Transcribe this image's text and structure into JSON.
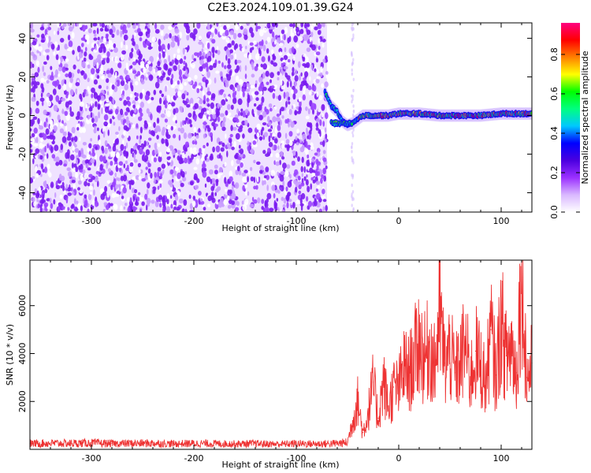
{
  "title": "C2E3.2024.109.01.39.G24",
  "chart_data": [
    {
      "type": "heatmap",
      "title": "",
      "xlabel": "Height of straight line (km)",
      "ylabel": "Frequency (Hz)",
      "xlim": [
        -360,
        130
      ],
      "ylim": [
        -50,
        48
      ],
      "x_ticks": [
        -300,
        -200,
        -100,
        0,
        100
      ],
      "y_ticks": [
        -40,
        -20,
        0,
        20,
        40
      ],
      "grid": false,
      "colorbar": {
        "label": "Normalized spectral amplitude",
        "range": [
          0.0,
          0.96
        ],
        "ticks": [
          0.0,
          0.2,
          0.4,
          0.6,
          0.8
        ],
        "colors": [
          "#ffffff",
          "#d9b8ff",
          "#9b30ff",
          "#4b00e0",
          "#0000ff",
          "#00c8ff",
          "#00ff80",
          "#00ff00",
          "#ffff00",
          "#ff8000",
          "#ff0000",
          "#ff0080"
        ]
      },
      "noise_region": {
        "x_from": -360,
        "x_to": -70,
        "amplitude_range": [
          0.0,
          0.15
        ]
      },
      "signal_ridge": {
        "x": [
          -72,
          -66,
          -60,
          -55,
          -50,
          -45,
          -40,
          -35,
          -30,
          -20,
          -10,
          0,
          20,
          40,
          60,
          80,
          100,
          120,
          130
        ],
        "freq": [
          12,
          5,
          2,
          -3,
          -5,
          -4,
          -2,
          0,
          0,
          0,
          0,
          1,
          1,
          0,
          0,
          0,
          1,
          1,
          1
        ]
      }
    },
    {
      "type": "line",
      "title": "",
      "xlabel": "Height of straight line (km)",
      "ylabel": "SNR (10 * v/v)",
      "xlim": [
        -360,
        130
      ],
      "ylim": [
        0,
        7900
      ],
      "x_ticks": [
        -300,
        -200,
        -100,
        0,
        100
      ],
      "y_ticks": [
        2000,
        4000,
        6000
      ],
      "grid": false,
      "series": [
        {
          "color": "#ee3333",
          "x": [
            -360,
            -340,
            -320,
            -300,
            -280,
            -260,
            -240,
            -220,
            -200,
            -180,
            -160,
            -140,
            -120,
            -100,
            -80,
            -60,
            -50,
            -45,
            -40,
            -35,
            -30,
            -25,
            -20,
            -15,
            -10,
            -5,
            0,
            5,
            10,
            15,
            20,
            25,
            30,
            35,
            40,
            45,
            50,
            55,
            60,
            65,
            70,
            75,
            80,
            85,
            90,
            95,
            100,
            105,
            110,
            115,
            120,
            125,
            130
          ],
          "values": [
            250,
            270,
            260,
            280,
            250,
            260,
            270,
            240,
            260,
            250,
            240,
            250,
            230,
            250,
            240,
            260,
            300,
            1200,
            2100,
            700,
            1500,
            2800,
            1300,
            2900,
            1800,
            2600,
            2600,
            3500,
            3200,
            3900,
            4700,
            3800,
            4500,
            3500,
            5800,
            3600,
            4200,
            3200,
            3700,
            4500,
            3000,
            4100,
            3600,
            2800,
            5000,
            3100,
            5500,
            3900,
            4500,
            3200,
            7900,
            3000,
            3600
          ]
        }
      ]
    }
  ]
}
